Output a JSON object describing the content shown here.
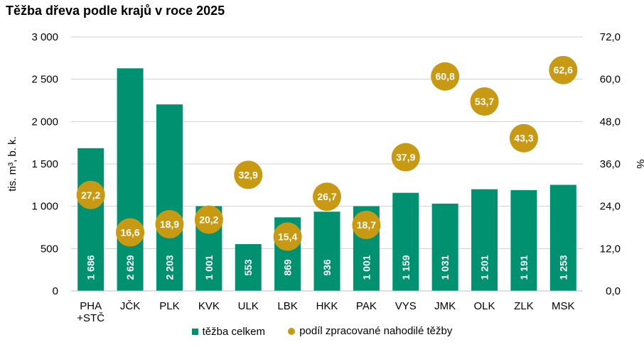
{
  "chart_data": {
    "type": "bar",
    "title": "Těžba dřeva podle krajů v roce 2025",
    "categories": [
      "PHA\n+STČ",
      "JČK",
      "PLK",
      "KVK",
      "ULK",
      "LBK",
      "HKK",
      "PAK",
      "VYS",
      "JMK",
      "OLK",
      "ZLK",
      "MSK"
    ],
    "ylabel": "tis. m³, b. k.",
    "y2label": "%",
    "ylim": [
      0,
      3000
    ],
    "y2lim": [
      0,
      72
    ],
    "yticks": [
      "0",
      "500",
      "1 000",
      "1 500",
      "2 000",
      "2 500",
      "3 000"
    ],
    "y2ticks": [
      "0,0",
      "12,0",
      "24,0",
      "36,0",
      "48,0",
      "60,0",
      "72,0"
    ],
    "grid": true,
    "legend_position": "bottom",
    "series": [
      {
        "name": "těžba celkem",
        "kind": "bar",
        "axis": "left",
        "color": "#009270",
        "values": [
          1686,
          2629,
          2203,
          1001,
          553,
          869,
          936,
          1001,
          1159,
          1031,
          1201,
          1191,
          1253
        ],
        "labels": [
          "1 686",
          "2 629",
          "2 203",
          "1 001",
          "553",
          "869",
          "936",
          "1 001",
          "1 159",
          "1 031",
          "1 201",
          "1 191",
          "1 253"
        ]
      },
      {
        "name": "podíl zpracované nahodilé těžby",
        "kind": "scatter",
        "axis": "right",
        "color": "#C89A14",
        "values": [
          27.2,
          16.6,
          18.9,
          20.2,
          32.9,
          15.4,
          26.7,
          18.7,
          37.9,
          60.8,
          53.7,
          43.3,
          62.6
        ],
        "labels": [
          "27,2",
          "16,6",
          "18,9",
          "20,2",
          "32,9",
          "15,4",
          "26,7",
          "18,7",
          "37,9",
          "60,8",
          "53,7",
          "43,3",
          "62,6"
        ]
      }
    ]
  }
}
